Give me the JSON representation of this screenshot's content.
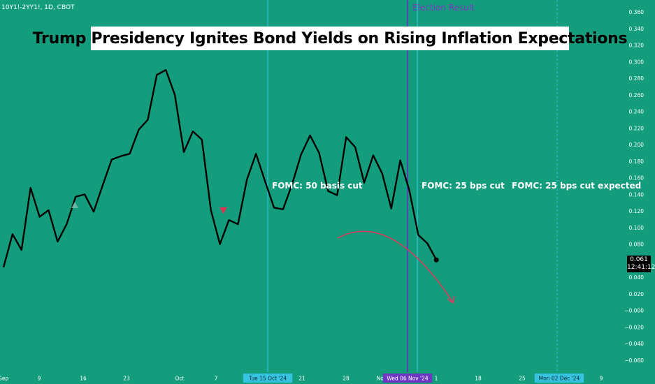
{
  "symbol": "10Y1!-2YY1!, 1D, CBOT",
  "title": "Trump Presidency Ignites Bond Yields on Rising Inflation Expectations",
  "annotations": {
    "fomc1": "FOMC: 50 basis cut",
    "fomc2": "FOMC: 25 bps cut",
    "fomc3": "FOMC: 25 bps cut expected",
    "election": "Election Result"
  },
  "last_price": {
    "value": "0.061",
    "time": "12:41:12"
  },
  "colors": {
    "background": "#139d7c",
    "line": "#000000",
    "fomc_line": "#36c3e0",
    "election_line": "#5b38b8",
    "arrow": "#d63a5a",
    "marker": "#e0334f"
  },
  "chart_data": {
    "type": "line",
    "ylim": [
      -0.07,
      0.365
    ],
    "y_ticks": [
      "0.360",
      "0.340",
      "0.320",
      "0.300",
      "0.280",
      "0.260",
      "0.240",
      "0.220",
      "0.200",
      "0.180",
      "0.160",
      "0.140",
      "0.120",
      "0.100",
      "0.080",
      "0.060",
      "0.040",
      "0.020",
      "−0.000",
      "−0.020",
      "−0.040",
      "−0.060"
    ],
    "x_ticks": [
      "Sep",
      "9",
      "16",
      "23",
      "Oct",
      "7",
      "Tue 15 Oct '24",
      "21",
      "28",
      "Nov",
      "Wed 06 Nov '24",
      "1",
      "18",
      "25",
      "Mon 02 Dec '24",
      "9"
    ],
    "series": [
      {
        "values": [
          [
            0,
            0.052
          ],
          [
            1,
            0.092
          ],
          [
            2,
            0.073
          ],
          [
            3,
            0.148
          ],
          [
            4,
            0.113
          ],
          [
            5,
            0.121
          ],
          [
            6,
            0.083
          ],
          [
            7,
            0.104
          ],
          [
            8,
            0.137
          ],
          [
            9,
            0.14
          ],
          [
            10,
            0.119
          ],
          [
            11,
            0.151
          ],
          [
            12,
            0.182
          ],
          [
            13,
            0.186
          ],
          [
            14,
            0.189
          ],
          [
            15,
            0.218
          ],
          [
            16,
            0.23
          ],
          [
            17,
            0.284
          ],
          [
            18,
            0.29
          ],
          [
            19,
            0.26
          ],
          [
            20,
            0.191
          ],
          [
            21,
            0.216
          ],
          [
            22,
            0.206
          ],
          [
            23,
            0.121
          ],
          [
            24,
            0.08
          ],
          [
            25,
            0.109
          ],
          [
            26,
            0.104
          ],
          [
            27,
            0.158
          ],
          [
            28,
            0.189
          ],
          [
            29,
            0.156
          ],
          [
            30,
            0.124
          ],
          [
            31,
            0.122
          ],
          [
            32,
            0.152
          ],
          [
            33,
            0.188
          ],
          [
            34,
            0.211
          ],
          [
            35,
            0.19
          ],
          [
            36,
            0.144
          ],
          [
            37,
            0.139
          ],
          [
            38,
            0.209
          ],
          [
            39,
            0.197
          ],
          [
            40,
            0.154
          ],
          [
            41,
            0.187
          ],
          [
            42,
            0.165
          ],
          [
            43,
            0.123
          ],
          [
            44,
            0.181
          ],
          [
            45,
            0.145
          ],
          [
            46,
            0.091
          ],
          [
            47,
            0.081
          ],
          [
            48,
            0.061
          ]
        ]
      }
    ],
    "events": [
      {
        "label": "FOMC: 50 basis cut",
        "date": "Tue 15 Oct '24"
      },
      {
        "label": "Election Result",
        "date": "Wed 06 Nov '24"
      },
      {
        "label": "FOMC: 25 bps cut",
        "date": "Nov"
      },
      {
        "label": "FOMC: 25 bps cut expected",
        "date": "Mon 02 Dec '24"
      }
    ],
    "grid": false,
    "legend": "none"
  }
}
